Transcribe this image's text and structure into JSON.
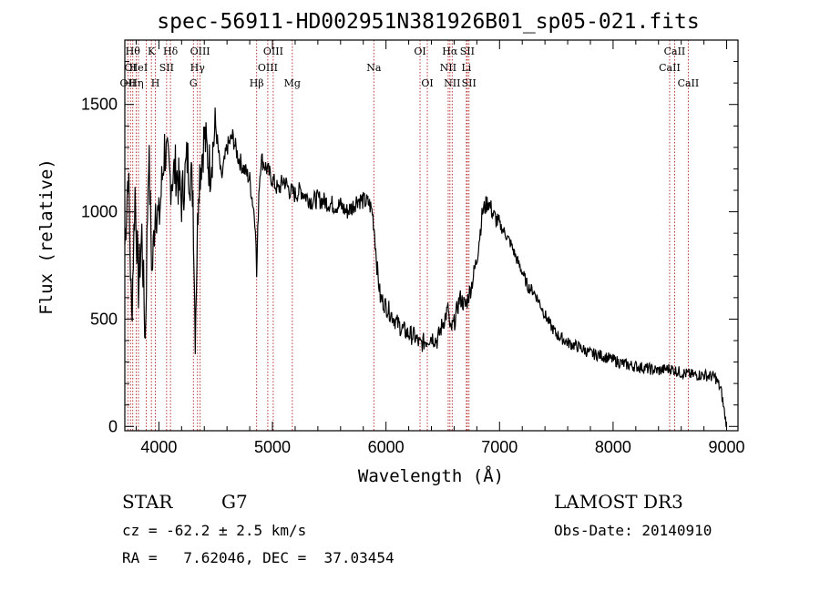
{
  "chart_data": {
    "type": "line",
    "title": "spec-56911-HD002951N381926B01_sp05-021.fits",
    "xlabel": "Wavelength (Å)",
    "ylabel": "Flux (relative)",
    "xlim": [
      3700,
      9100
    ],
    "ylim": [
      -20,
      1800
    ],
    "xticks": [
      4000,
      5000,
      6000,
      7000,
      8000,
      9000
    ],
    "yticks": [
      0,
      500,
      1000,
      1500
    ],
    "grid": false,
    "series": [
      {
        "x": [
          3700,
          3730,
          3760,
          3790,
          3820,
          3850,
          3880,
          3910,
          3940,
          3970,
          4000,
          4050,
          4100,
          4150,
          4200,
          4250,
          4300,
          4320,
          4350,
          4400,
          4450,
          4500,
          4550,
          4600,
          4650,
          4700,
          4750,
          4800,
          4850,
          4861,
          4880,
          4900,
          4950,
          5000,
          5050,
          5100,
          5150,
          5200,
          5250,
          5300,
          5350,
          5400,
          5450,
          5500,
          5550,
          5600,
          5650,
          5700,
          5750,
          5800,
          5850,
          5880,
          5900,
          5920,
          5950,
          6000,
          6050,
          6100,
          6150,
          6200,
          6250,
          6300,
          6350,
          6400,
          6450,
          6500,
          6550,
          6563,
          6600,
          6650,
          6700,
          6750,
          6800,
          6850,
          6900,
          6950,
          7000,
          7050,
          7100,
          7150,
          7200,
          7250,
          7300,
          7350,
          7400,
          7450,
          7500,
          7600,
          7700,
          7800,
          7900,
          8000,
          8100,
          8200,
          8300,
          8400,
          8500,
          8550,
          8600,
          8700,
          8800,
          8900,
          8950,
          9000
        ],
        "y": [
          850,
          1200,
          500,
          1100,
          650,
          900,
          400,
          1300,
          700,
          1050,
          950,
          1300,
          1150,
          1200,
          1050,
          1250,
          1100,
          450,
          1150,
          1350,
          1200,
          1400,
          1150,
          1300,
          1350,
          1250,
          1200,
          1150,
          950,
          700,
          1100,
          1250,
          1200,
          1150,
          1100,
          1150,
          1100,
          1080,
          1100,
          1070,
          1050,
          1060,
          1050,
          1040,
          1030,
          1030,
          1000,
          1020,
          1060,
          1050,
          1040,
          1000,
          900,
          750,
          600,
          560,
          520,
          480,
          450,
          430,
          420,
          380,
          400,
          420,
          400,
          480,
          550,
          440,
          480,
          600,
          560,
          650,
          780,
          1000,
          1050,
          980,
          940,
          900,
          850,
          780,
          720,
          650,
          630,
          580,
          520,
          470,
          430,
          390,
          370,
          340,
          330,
          310,
          290,
          280,
          270,
          260,
          270,
          260,
          250,
          240,
          240,
          230,
          170,
          0
        ]
      }
    ],
    "spectral_lines": [
      {
        "wavelength": 3727,
        "label": "OII",
        "row": 2
      },
      {
        "wavelength": 3750,
        "label": "OI",
        "row": 1
      },
      {
        "wavelength": 3770,
        "label": "Hθ",
        "row": 0
      },
      {
        "wavelength": 3800,
        "label": "Hη",
        "row": 2
      },
      {
        "wavelength": 3820,
        "label": "HeI",
        "row": 1
      },
      {
        "wavelength": 3889,
        "label": "",
        "row": 3
      },
      {
        "wavelength": 3934,
        "label": "K",
        "row": 0
      },
      {
        "wavelength": 3969,
        "label": "H",
        "row": 2
      },
      {
        "wavelength": 4068,
        "label": "SII",
        "row": 1
      },
      {
        "wavelength": 4102,
        "label": "Hδ",
        "row": 0
      },
      {
        "wavelength": 4304,
        "label": "G",
        "row": 2
      },
      {
        "wavelength": 4340,
        "label": "Hγ",
        "row": 1
      },
      {
        "wavelength": 4363,
        "label": "OIII",
        "row": 0
      },
      {
        "wavelength": 4861,
        "label": "Hβ",
        "row": 2
      },
      {
        "wavelength": 4959,
        "label": "OIII",
        "row": 1
      },
      {
        "wavelength": 5007,
        "label": "OIII",
        "row": 0
      },
      {
        "wavelength": 5175,
        "label": "Mg",
        "row": 2
      },
      {
        "wavelength": 5893,
        "label": "Na",
        "row": 1
      },
      {
        "wavelength": 6300,
        "label": "OI",
        "row": 0
      },
      {
        "wavelength": 6364,
        "label": "OI",
        "row": 2
      },
      {
        "wavelength": 6548,
        "label": "NII",
        "row": 1
      },
      {
        "wavelength": 6563,
        "label": "Hα",
        "row": 0
      },
      {
        "wavelength": 6583,
        "label": "NII",
        "row": 2
      },
      {
        "wavelength": 6708,
        "label": "Li",
        "row": 1
      },
      {
        "wavelength": 6716,
        "label": "SII",
        "row": 0
      },
      {
        "wavelength": 6731,
        "label": "SII",
        "row": 2
      },
      {
        "wavelength": 8498,
        "label": "CaII",
        "row": 1
      },
      {
        "wavelength": 8542,
        "label": "CaII",
        "row": 0
      },
      {
        "wavelength": 8662,
        "label": "CaII",
        "row": 2
      }
    ]
  },
  "info": {
    "class": "STAR",
    "subclass": "G7",
    "survey": "LAMOST DR3",
    "cz": "cz = -62.2 ± 2.5 km/s",
    "obs_date": "Obs-Date: 20140910",
    "coords": "RA =   7.62046, DEC =  37.03454"
  },
  "colors": {
    "spectrum": "#000000",
    "line_markers": "#b22222",
    "axes": "#000000"
  }
}
